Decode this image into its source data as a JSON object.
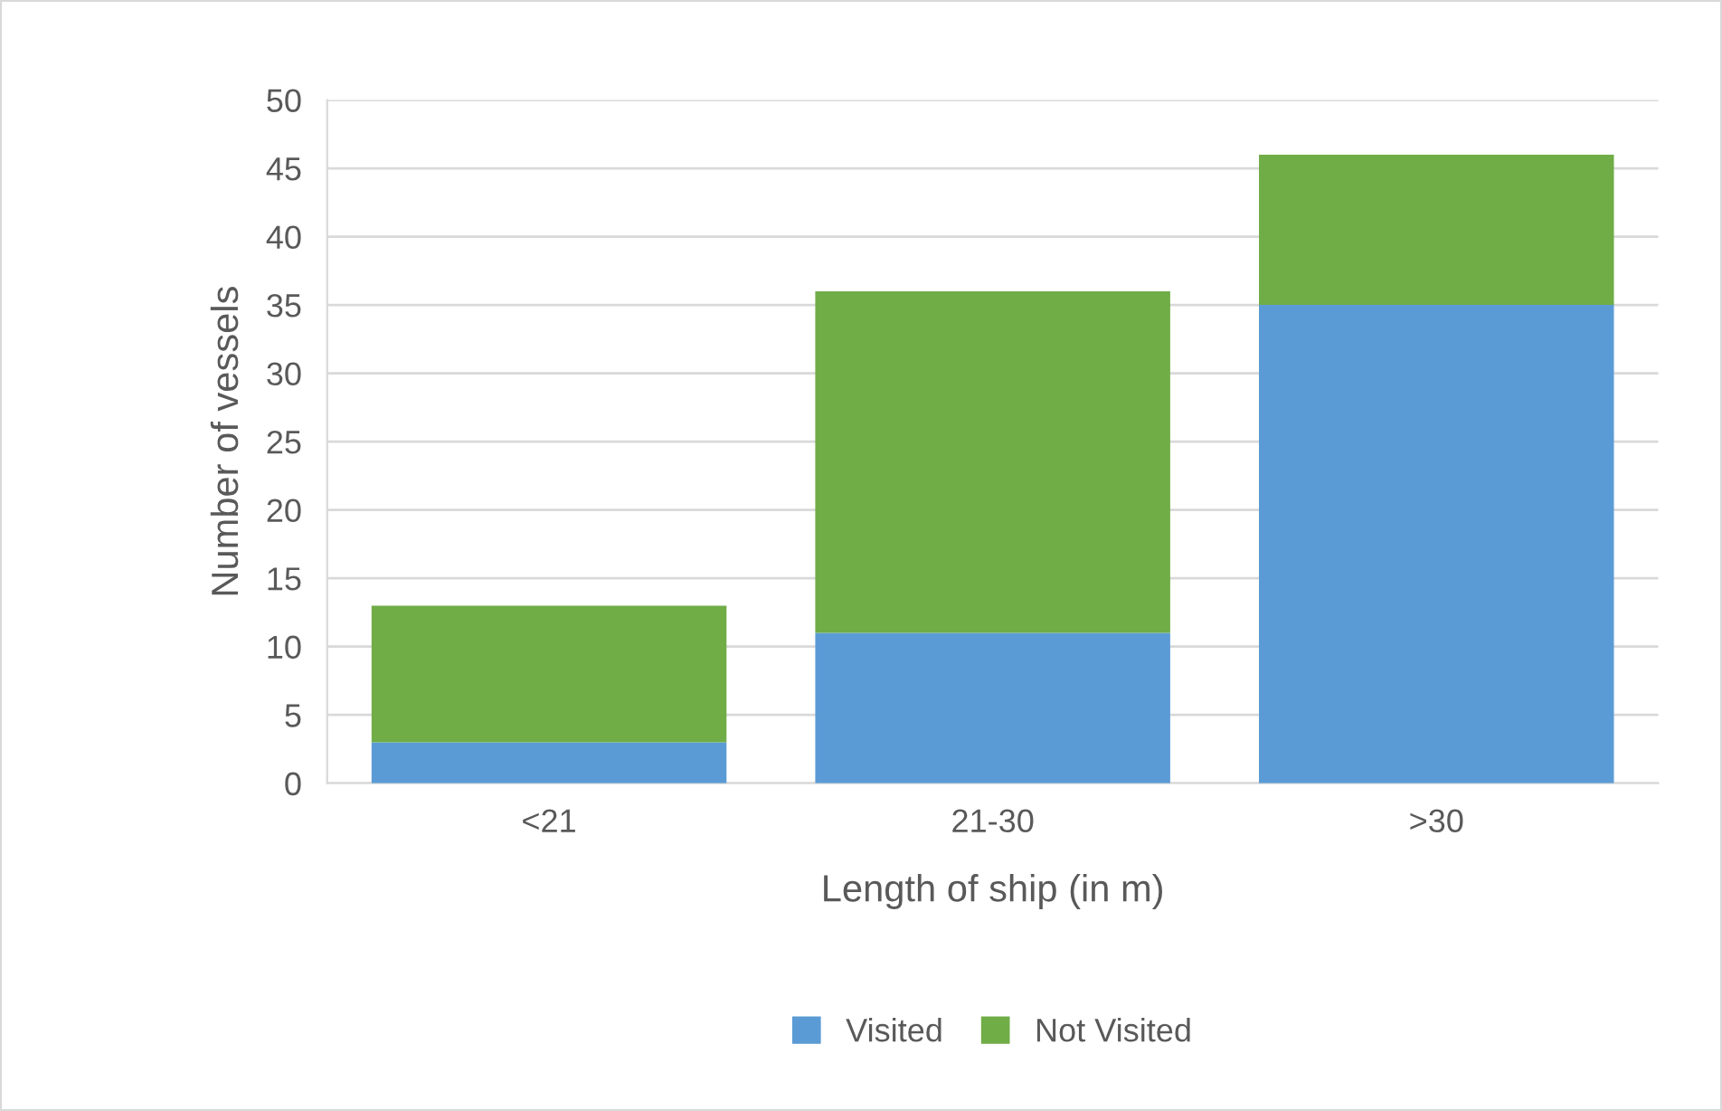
{
  "chart_data": {
    "type": "bar",
    "xlabel": "Length of ship (in m)",
    "ylabel": "Number of vessels",
    "categories": [
      "<21",
      "21-30",
      ">30"
    ],
    "stacked": true,
    "series": [
      {
        "name": "Visited",
        "color": "#5b9bd5",
        "values": [
          3,
          11,
          35
        ]
      },
      {
        "name": "Not Visited",
        "color": "#70ad47",
        "values": [
          10,
          25,
          11
        ]
      }
    ],
    "ylim": [
      0,
      50
    ],
    "yticks": [
      0,
      5,
      10,
      15,
      20,
      25,
      30,
      35,
      40,
      45,
      50
    ],
    "grid": "y",
    "legend": "bottom"
  }
}
